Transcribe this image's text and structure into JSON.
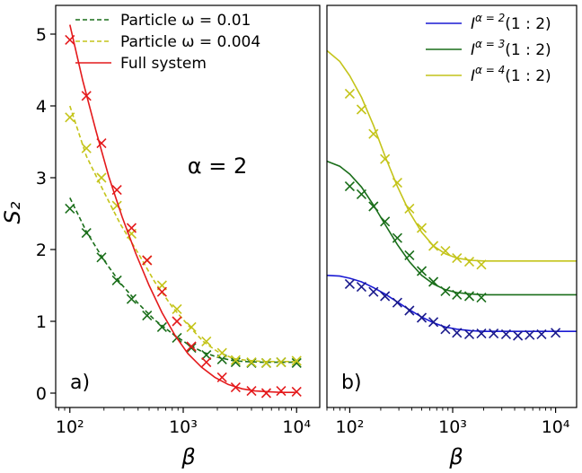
{
  "chart_data": [
    {
      "type": "line",
      "panel_label": "a)",
      "annotation": "α = 2",
      "xlabel": "β",
      "ylabel": "S₂",
      "xscale": "log",
      "xlim": [
        75,
        16000
      ],
      "ylim": [
        -0.2,
        5.4
      ],
      "x_ticks": [
        100,
        1000,
        10000
      ],
      "x_tick_labels": [
        "10²",
        "10³",
        "10⁴"
      ],
      "y_ticks": [
        0,
        1,
        2,
        3,
        4,
        5
      ],
      "y_tick_labels": [
        "0",
        "1",
        "2",
        "3",
        "4",
        "5"
      ],
      "legend_position": "top-right",
      "series": [
        {
          "name": "Particle ω = 0.01",
          "color": "#1a6e1a",
          "line_style": "dashed",
          "line_x": [
            100,
            140,
            200,
            280,
            400,
            560,
            800,
            1100,
            1500,
            2000,
            2800,
            3500,
            5000,
            7000,
            10000
          ],
          "line_y": [
            2.72,
            2.25,
            1.85,
            1.53,
            1.25,
            1.02,
            0.83,
            0.68,
            0.57,
            0.5,
            0.45,
            0.44,
            0.43,
            0.43,
            0.43
          ],
          "marker_x": [
            100,
            140,
            190,
            260,
            350,
            480,
            650,
            880,
            1180,
            1600,
            2200,
            2900,
            4000,
            5400,
            7300,
            10000
          ],
          "marker_y": [
            2.57,
            2.23,
            1.89,
            1.57,
            1.31,
            1.08,
            0.92,
            0.77,
            0.63,
            0.53,
            0.47,
            0.43,
            0.42,
            0.42,
            0.43,
            0.42
          ]
        },
        {
          "name": "Particle ω = 0.004",
          "color": "#c4c41a",
          "line_style": "dashed",
          "line_x": [
            100,
            140,
            200,
            280,
            400,
            560,
            800,
            1100,
            1500,
            2000,
            2800,
            3500,
            5000,
            7000,
            10000
          ],
          "line_y": [
            4.0,
            3.3,
            2.8,
            2.35,
            1.95,
            1.55,
            1.2,
            0.95,
            0.72,
            0.58,
            0.48,
            0.46,
            0.44,
            0.44,
            0.44
          ],
          "marker_x": [
            100,
            140,
            190,
            260,
            350,
            480,
            650,
            880,
            1180,
            1600,
            2200,
            2900,
            4000,
            5400,
            7300,
            10000
          ],
          "marker_y": [
            3.84,
            3.41,
            3.0,
            2.61,
            2.22,
            1.85,
            1.5,
            1.17,
            0.92,
            0.72,
            0.56,
            0.46,
            0.43,
            0.42,
            0.43,
            0.45
          ]
        },
        {
          "name": "Full system",
          "color": "#e41a1c",
          "line_style": "solid",
          "line_x": [
            100,
            130,
            170,
            220,
            290,
            380,
            500,
            650,
            850,
            1100,
            1450,
            1900,
            2500,
            3300,
            4300,
            5600,
            7300,
            10000
          ],
          "line_y": [
            5.13,
            4.35,
            3.65,
            3.02,
            2.45,
            1.95,
            1.5,
            1.12,
            0.8,
            0.55,
            0.36,
            0.22,
            0.12,
            0.06,
            0.03,
            0.02,
            0.01,
            0.01
          ],
          "marker_x": [
            100,
            140,
            190,
            260,
            350,
            480,
            650,
            880,
            1180,
            1600,
            2200,
            2900,
            4000,
            5400,
            7300,
            10000
          ],
          "marker_y": [
            4.92,
            4.14,
            3.48,
            2.83,
            2.3,
            1.85,
            1.41,
            1.0,
            0.65,
            0.43,
            0.22,
            0.08,
            0.03,
            0.0,
            0.03,
            0.02
          ]
        }
      ]
    },
    {
      "type": "line",
      "panel_label": "b)",
      "xlabel": "β",
      "xscale": "log",
      "xlim": [
        60,
        16000
      ],
      "ylim": [
        -0.2,
        5.4
      ],
      "x_ticks": [
        100,
        1000,
        10000
      ],
      "x_tick_labels": [
        "10²",
        "10³",
        "10⁴"
      ],
      "legend_position": "top-right",
      "series": [
        {
          "name": "I^{α=2}(1:2)",
          "legend_main": "I",
          "legend_sup": "α = 2",
          "legend_tail": "(1 : 2)",
          "color": "#1a1ad4",
          "marker_color": "#1a1a8c",
          "line_style": "solid",
          "line_x": [
            60,
            80,
            100,
            130,
            170,
            220,
            290,
            380,
            500,
            650,
            850,
            1100,
            1500,
            2000,
            3000,
            5000,
            8000,
            16000
          ],
          "line_y": [
            1.64,
            1.63,
            1.6,
            1.55,
            1.47,
            1.38,
            1.27,
            1.16,
            1.06,
            0.98,
            0.92,
            0.89,
            0.87,
            0.86,
            0.86,
            0.86,
            0.86,
            0.86
          ],
          "marker_x": [
            100,
            130,
            170,
            220,
            290,
            380,
            500,
            650,
            850,
            1100,
            1450,
            1900,
            2500,
            3300,
            4300,
            5600,
            7300,
            10000
          ],
          "marker_y": [
            1.52,
            1.48,
            1.41,
            1.35,
            1.26,
            1.15,
            1.05,
            0.99,
            0.89,
            0.84,
            0.82,
            0.83,
            0.83,
            0.82,
            0.8,
            0.81,
            0.82,
            0.84
          ]
        },
        {
          "name": "I^{α=3}(1:2)",
          "legend_main": "I",
          "legend_sup": "α = 3",
          "legend_tail": "(1 : 2)",
          "color": "#1a6e1a",
          "marker_color": "#1a6e1a",
          "line_style": "solid",
          "line_x": [
            60,
            80,
            100,
            130,
            170,
            220,
            290,
            380,
            500,
            650,
            850,
            1100,
            1500,
            2000,
            3000,
            5000,
            8000,
            16000
          ],
          "line_y": [
            3.23,
            3.16,
            3.05,
            2.87,
            2.62,
            2.35,
            2.07,
            1.83,
            1.64,
            1.52,
            1.44,
            1.4,
            1.38,
            1.37,
            1.37,
            1.37,
            1.37,
            1.37
          ],
          "marker_x": [
            100,
            130,
            170,
            220,
            290,
            380,
            500,
            650,
            850,
            1100,
            1450,
            1900
          ],
          "marker_y": [
            2.88,
            2.77,
            2.6,
            2.39,
            2.16,
            1.92,
            1.7,
            1.55,
            1.42,
            1.37,
            1.35,
            1.33
          ]
        },
        {
          "name": "I^{α=4}(1:2)",
          "legend_main": "I",
          "legend_sup": "α = 4",
          "legend_tail": "(1 : 2)",
          "color": "#c4c41a",
          "marker_color": "#c4c41a",
          "line_style": "solid",
          "line_x": [
            60,
            80,
            100,
            130,
            170,
            220,
            290,
            380,
            500,
            650,
            850,
            1100,
            1500,
            2000,
            3000,
            5000,
            8000,
            16000
          ],
          "line_y": [
            4.77,
            4.62,
            4.42,
            4.12,
            3.73,
            3.3,
            2.88,
            2.52,
            2.24,
            2.05,
            1.94,
            1.88,
            1.85,
            1.84,
            1.84,
            1.84,
            1.84,
            1.84
          ],
          "marker_x": [
            100,
            130,
            170,
            220,
            290,
            380,
            500,
            650,
            850,
            1100,
            1450,
            1900
          ],
          "marker_y": [
            4.17,
            3.95,
            3.61,
            3.26,
            2.93,
            2.57,
            2.3,
            2.05,
            1.98,
            1.88,
            1.83,
            1.79
          ]
        }
      ]
    }
  ]
}
